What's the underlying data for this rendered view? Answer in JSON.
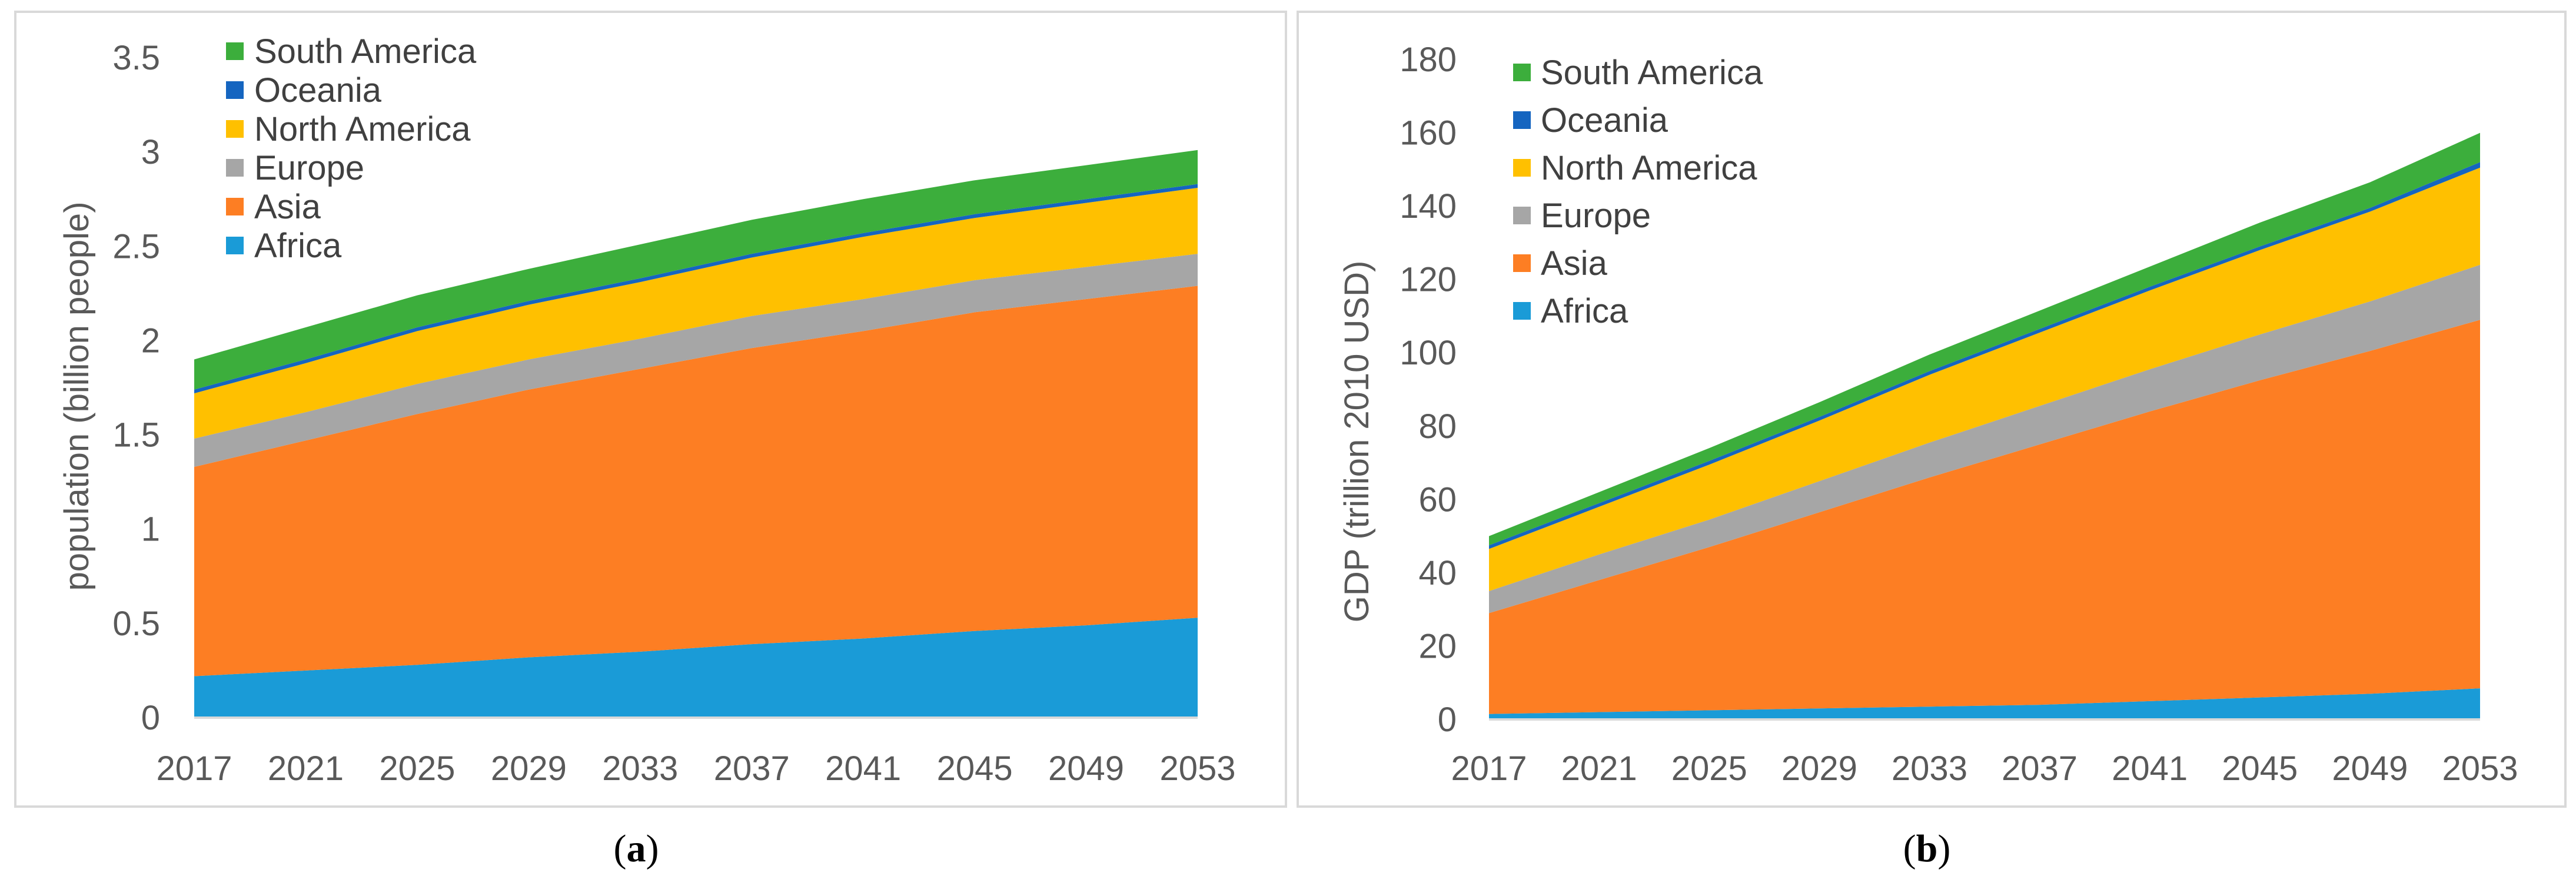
{
  "colors": {
    "Africa": "#1a9bd7",
    "Asia": "#fd7e23",
    "Europe": "#a6a6a6",
    "North America": "#ffc000",
    "Oceania": "#1565c0",
    "South America": "#3cae3c"
  },
  "captions": {
    "a_letter": "a",
    "b_letter": "b",
    "open": "(",
    "close": ")"
  },
  "chart_data": [
    {
      "id": "a",
      "type": "area",
      "stacked": true,
      "title": "",
      "xlabel": "",
      "ylabel": "population (billion people)",
      "x": [
        2017,
        2021,
        2025,
        2029,
        2033,
        2037,
        2041,
        2045,
        2049,
        2053
      ],
      "x_ticks": [
        "2017",
        "2021",
        "2025",
        "2029",
        "2033",
        "2037",
        "2041",
        "2045",
        "2049",
        "2053"
      ],
      "ylim": [
        0,
        3.5
      ],
      "y_ticks": [
        0,
        0.5,
        1,
        1.5,
        2,
        2.5,
        3,
        3.5
      ],
      "y_tick_labels": [
        "0",
        "0.5",
        "1",
        "1.5",
        "2",
        "2.5",
        "3",
        "3.5"
      ],
      "legend": "top-left",
      "grid": false,
      "series": [
        {
          "name": "Africa",
          "values": [
            0.22,
            0.25,
            0.28,
            0.32,
            0.35,
            0.39,
            0.42,
            0.46,
            0.49,
            0.53
          ]
        },
        {
          "name": "Asia",
          "values": [
            1.11,
            1.22,
            1.33,
            1.42,
            1.5,
            1.57,
            1.63,
            1.69,
            1.73,
            1.76
          ]
        },
        {
          "name": "Europe",
          "values": [
            0.15,
            0.15,
            0.16,
            0.16,
            0.16,
            0.17,
            0.17,
            0.17,
            0.17,
            0.17
          ]
        },
        {
          "name": "North America",
          "values": [
            0.24,
            0.26,
            0.28,
            0.29,
            0.3,
            0.31,
            0.33,
            0.33,
            0.34,
            0.35
          ]
        },
        {
          "name": "Oceania",
          "values": [
            0.02,
            0.02,
            0.02,
            0.02,
            0.02,
            0.02,
            0.02,
            0.02,
            0.02,
            0.02
          ]
        },
        {
          "name": "South America",
          "values": [
            0.16,
            0.17,
            0.17,
            0.17,
            0.18,
            0.18,
            0.18,
            0.18,
            0.18,
            0.18
          ]
        }
      ]
    },
    {
      "id": "b",
      "type": "area",
      "stacked": true,
      "title": "",
      "xlabel": "",
      "ylabel": "GDP (trillion 2010 USD)",
      "x": [
        2017,
        2021,
        2025,
        2029,
        2033,
        2037,
        2041,
        2045,
        2049,
        2053
      ],
      "x_ticks": [
        "2017",
        "2021",
        "2025",
        "2029",
        "2033",
        "2037",
        "2041",
        "2045",
        "2049",
        "2053"
      ],
      "ylim": [
        0,
        180
      ],
      "y_ticks": [
        0,
        20,
        40,
        60,
        80,
        100,
        120,
        140,
        160,
        180
      ],
      "y_tick_labels": [
        "0",
        "20",
        "40",
        "60",
        "80",
        "100",
        "120",
        "140",
        "160",
        "180"
      ],
      "legend": "top-left",
      "grid": false,
      "series": [
        {
          "name": "Africa",
          "values": [
            1.5,
            2,
            2.5,
            3,
            3.5,
            4,
            5,
            6,
            7,
            8.5
          ]
        },
        {
          "name": "Asia",
          "values": [
            27.5,
            36,
            44.5,
            53.5,
            62.5,
            71,
            79,
            86.5,
            93.5,
            100.5
          ]
        },
        {
          "name": "Europe",
          "values": [
            6,
            7,
            7.5,
            8.5,
            9.5,
            10.5,
            11.5,
            12.5,
            13.5,
            15
          ]
        },
        {
          "name": "North America",
          "values": [
            11.5,
            13,
            15,
            16.5,
            18.5,
            20,
            21.5,
            23,
            24.5,
            26.5
          ]
        },
        {
          "name": "Oceania",
          "values": [
            1,
            1,
            1,
            1,
            1,
            1,
            1,
            1,
            1,
            1.5
          ]
        },
        {
          "name": "South America",
          "values": [
            2.5,
            3,
            3.5,
            4,
            4.5,
            5,
            5.5,
            6.5,
            7,
            8
          ]
        }
      ]
    }
  ]
}
